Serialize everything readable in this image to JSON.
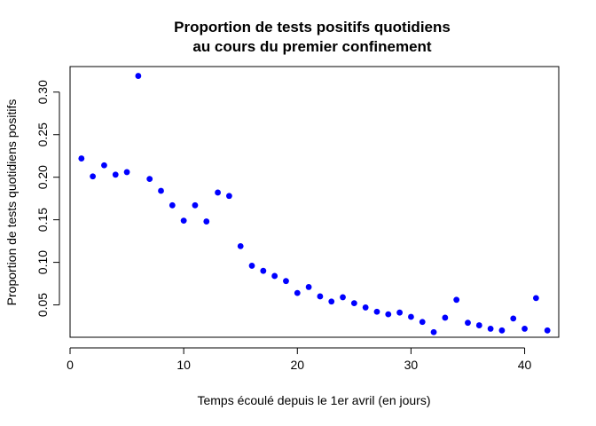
{
  "chart_data": {
    "type": "scatter",
    "title_lines": [
      "Proportion de tests positifs quotidiens",
      "au cours du premier confinement"
    ],
    "xlabel": "Temps écoulé depuis le 1er avril (en jours)",
    "ylabel": "Proportion de tests quotidiens positifs",
    "xlim": [
      0,
      43
    ],
    "ylim": [
      0.012,
      0.33
    ],
    "xticks": [
      0,
      10,
      20,
      30,
      40
    ],
    "yticks": [
      0.05,
      0.1,
      0.15,
      0.2,
      0.25,
      0.3
    ],
    "xtick_labels": [
      "0",
      "10",
      "20",
      "30",
      "40"
    ],
    "ytick_labels": [
      "0.05",
      "0.10",
      "0.15",
      "0.20",
      "0.25",
      "0.30"
    ],
    "grid": false,
    "legend": "none",
    "marker_color": "#0000ff",
    "x": [
      1,
      2,
      3,
      4,
      5,
      6,
      7,
      8,
      9,
      10,
      11,
      12,
      13,
      14,
      15,
      16,
      17,
      18,
      19,
      20,
      21,
      22,
      23,
      24,
      25,
      26,
      27,
      28,
      29,
      30,
      31,
      32,
      33,
      34,
      35,
      36,
      37,
      38,
      39,
      40,
      41,
      42
    ],
    "y": [
      0.222,
      0.201,
      0.214,
      0.203,
      0.206,
      0.319,
      0.198,
      0.184,
      0.167,
      0.149,
      0.167,
      0.148,
      0.182,
      0.178,
      0.119,
      0.096,
      0.09,
      0.084,
      0.078,
      0.064,
      0.071,
      0.06,
      0.054,
      0.059,
      0.052,
      0.047,
      0.042,
      0.039,
      0.041,
      0.036,
      0.03,
      0.018,
      0.035,
      0.056,
      0.029,
      0.026,
      0.022,
      0.02,
      0.034,
      0.022,
      0.058,
      0.02
    ]
  }
}
